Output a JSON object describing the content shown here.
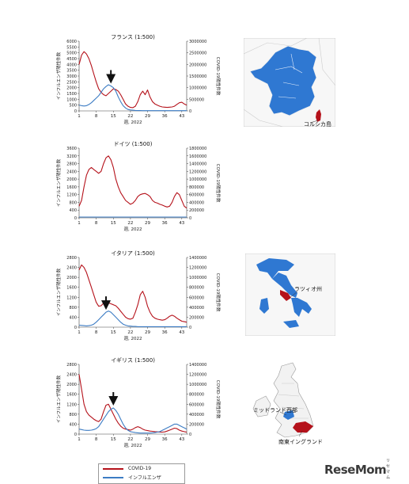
{
  "chart_data": [
    {
      "type": "line",
      "title": "フランス (1:500)",
      "xlabel": "週, 2022",
      "ylabel_left": "インフルエンザ陽性件数",
      "ylabel_right": "COVID-19陽性件数",
      "x": [
        1,
        2,
        3,
        4,
        5,
        6,
        7,
        8,
        9,
        10,
        11,
        12,
        13,
        14,
        15,
        16,
        17,
        18,
        19,
        20,
        21,
        22,
        23,
        24,
        25,
        26,
        27,
        28,
        29,
        30,
        31,
        32,
        33,
        34,
        35,
        36,
        37,
        38,
        39,
        40,
        41,
        42,
        43,
        44,
        45
      ],
      "xticks": [
        1,
        8,
        15,
        22,
        29,
        36,
        43
      ],
      "yticks_left": [
        0,
        500,
        1000,
        1500,
        2000,
        2500,
        3000,
        3500,
        4000,
        4500,
        5000,
        5500,
        6000
      ],
      "yticks_right": [
        0,
        500000,
        1000000,
        1500000,
        2000000,
        2500000,
        3000000
      ],
      "ylim_left": [
        0,
        6000
      ],
      "ylim_right": [
        0,
        3000000
      ],
      "arrow_week": 14,
      "series": [
        {
          "name": "COVID-19",
          "axis": "right",
          "color": "#b5121b",
          "values": [
            2000000,
            2400000,
            2550000,
            2450000,
            2250000,
            1950000,
            1600000,
            1250000,
            950000,
            800000,
            700000,
            650000,
            750000,
            850000,
            950000,
            920000,
            850000,
            700000,
            500000,
            300000,
            200000,
            150000,
            140000,
            200000,
            400000,
            700000,
            850000,
            700000,
            900000,
            600000,
            400000,
            300000,
            250000,
            200000,
            170000,
            160000,
            150000,
            160000,
            170000,
            200000,
            280000,
            350000,
            370000,
            300000,
            250000
          ]
        },
        {
          "name": "インフルエンザ",
          "axis": "left",
          "color": "#3c7cc4",
          "values": [
            500,
            450,
            420,
            450,
            550,
            700,
            900,
            1100,
            1300,
            1600,
            1900,
            2100,
            2250,
            2150,
            2000,
            1700,
            1200,
            800,
            450,
            250,
            120,
            80,
            60,
            40,
            30,
            30,
            20,
            20,
            20,
            20,
            20,
            20,
            20,
            20,
            20,
            20,
            20,
            20,
            20,
            20,
            20,
            20,
            20,
            20,
            20
          ]
        }
      ]
    },
    {
      "type": "line",
      "title": "ドイツ (1:500)",
      "xlabel": "週, 2022",
      "ylabel_left": "インフルエンザ陽性件数",
      "ylabel_right": "COVID-19陽性件数",
      "x": [
        1,
        2,
        3,
        4,
        5,
        6,
        7,
        8,
        9,
        10,
        11,
        12,
        13,
        14,
        15,
        16,
        17,
        18,
        19,
        20,
        21,
        22,
        23,
        24,
        25,
        26,
        27,
        28,
        29,
        30,
        31,
        32,
        33,
        34,
        35,
        36,
        37,
        38,
        39,
        40,
        41,
        42,
        43,
        44,
        45
      ],
      "xticks": [
        1,
        8,
        15,
        22,
        29,
        36,
        43
      ],
      "yticks_left": [
        0,
        400,
        800,
        1200,
        1600,
        2000,
        2400,
        2800,
        3200,
        3600
      ],
      "yticks_right": [
        0,
        200000,
        400000,
        600000,
        800000,
        1000000,
        1200000,
        1400000,
        1600000,
        1800000
      ],
      "ylim_left": [
        0,
        3600
      ],
      "ylim_right": [
        0,
        1800000
      ],
      "arrow_week": null,
      "series": [
        {
          "name": "COVID-19",
          "axis": "right",
          "color": "#b5121b",
          "values": [
            300000,
            450000,
            800000,
            1100000,
            1250000,
            1300000,
            1250000,
            1200000,
            1150000,
            1200000,
            1400000,
            1550000,
            1600000,
            1500000,
            1300000,
            1000000,
            800000,
            650000,
            550000,
            450000,
            400000,
            350000,
            380000,
            450000,
            550000,
            600000,
            620000,
            630000,
            600000,
            550000,
            450000,
            400000,
            380000,
            350000,
            330000,
            300000,
            280000,
            300000,
            400000,
            550000,
            650000,
            600000,
            450000,
            300000,
            250000
          ]
        },
        {
          "name": "インフルエンザ",
          "axis": "left",
          "color": "#3c7cc4",
          "values": [
            40,
            40,
            40,
            40,
            40,
            40,
            40,
            40,
            40,
            40,
            40,
            40,
            40,
            40,
            40,
            40,
            40,
            40,
            40,
            40,
            40,
            40,
            40,
            40,
            40,
            40,
            40,
            40,
            40,
            40,
            40,
            40,
            40,
            40,
            40,
            40,
            40,
            40,
            40,
            40,
            40,
            40,
            40,
            40,
            40
          ]
        }
      ]
    },
    {
      "type": "line",
      "title": "イタリア (1:500)",
      "xlabel": "週, 2022",
      "ylabel_left": "インフルエンザ陽性件数",
      "ylabel_right": "COVID-19陽性件数",
      "x": [
        1,
        2,
        3,
        4,
        5,
        6,
        7,
        8,
        9,
        10,
        11,
        12,
        13,
        14,
        15,
        16,
        17,
        18,
        19,
        20,
        21,
        22,
        23,
        24,
        25,
        26,
        27,
        28,
        29,
        30,
        31,
        32,
        33,
        34,
        35,
        36,
        37,
        38,
        39,
        40,
        41,
        42,
        43,
        44,
        45
      ],
      "xticks": [
        1,
        8,
        15,
        22,
        29,
        36,
        43
      ],
      "yticks_left": [
        0,
        400,
        800,
        1200,
        1600,
        2000,
        2400,
        2800
      ],
      "yticks_right": [
        0,
        200000,
        400000,
        600000,
        800000,
        1000000,
        1200000,
        1400000
      ],
      "ylim_left": [
        0,
        2800
      ],
      "ylim_right": [
        0,
        1400000
      ],
      "arrow_week": 12,
      "series": [
        {
          "name": "COVID-19",
          "axis": "right",
          "color": "#b5121b",
          "values": [
            1150000,
            1250000,
            1200000,
            1100000,
            950000,
            800000,
            650000,
            500000,
            420000,
            430000,
            480000,
            500000,
            490000,
            470000,
            450000,
            430000,
            380000,
            320000,
            260000,
            200000,
            170000,
            160000,
            180000,
            300000,
            450000,
            650000,
            720000,
            600000,
            420000,
            300000,
            220000,
            180000,
            160000,
            150000,
            140000,
            150000,
            180000,
            220000,
            240000,
            220000,
            180000,
            150000,
            120000,
            110000,
            100000
          ]
        },
        {
          "name": "インフルエンザ",
          "axis": "left",
          "color": "#3c7cc4",
          "values": [
            80,
            70,
            60,
            50,
            60,
            80,
            120,
            200,
            300,
            400,
            500,
            600,
            650,
            600,
            500,
            400,
            300,
            200,
            120,
            80,
            50,
            40,
            30,
            30,
            20,
            20,
            20,
            20,
            20,
            20,
            20,
            20,
            20,
            20,
            20,
            20,
            20,
            20,
            20,
            20,
            20,
            20,
            20,
            20,
            20
          ]
        }
      ]
    },
    {
      "type": "line",
      "title": "イギリス (1:500)",
      "xlabel": "週, 2022",
      "ylabel_left": "インフルエンザ陽性件数",
      "ylabel_right": "COVID-19陽性件数",
      "x": [
        1,
        2,
        3,
        4,
        5,
        6,
        7,
        8,
        9,
        10,
        11,
        12,
        13,
        14,
        15,
        16,
        17,
        18,
        19,
        20,
        21,
        22,
        23,
        24,
        25,
        26,
        27,
        28,
        29,
        30,
        31,
        32,
        33,
        34,
        35,
        36,
        37,
        38,
        39,
        40,
        41,
        42,
        43,
        44,
        45
      ],
      "xticks": [
        1,
        8,
        15,
        22,
        29,
        36,
        43
      ],
      "yticks_left": [
        0,
        400,
        800,
        1200,
        1600,
        2000,
        2400,
        2800
      ],
      "yticks_right": [
        0,
        200000,
        400000,
        600000,
        800000,
        1000000,
        1200000,
        1400000
      ],
      "ylim_left": [
        0,
        2800
      ],
      "ylim_right": [
        0,
        1400000
      ],
      "arrow_week": 15,
      "series": [
        {
          "name": "COVID-19",
          "axis": "right",
          "color": "#b5121b",
          "values": [
            1200000,
            900000,
            600000,
            450000,
            380000,
            340000,
            300000,
            270000,
            250000,
            300000,
            450000,
            580000,
            600000,
            500000,
            400000,
            300000,
            220000,
            160000,
            120000,
            100000,
            90000,
            80000,
            100000,
            130000,
            150000,
            130000,
            100000,
            80000,
            70000,
            60000,
            55000,
            50000,
            45000,
            40000,
            40000,
            45000,
            60000,
            80000,
            100000,
            120000,
            110000,
            80000,
            60000,
            50000,
            40000
          ]
        },
        {
          "name": "インフルエンザ",
          "axis": "left",
          "color": "#3c7cc4",
          "values": [
            200,
            180,
            160,
            150,
            150,
            160,
            180,
            220,
            300,
            450,
            600,
            750,
            900,
            1000,
            1050,
            950,
            800,
            600,
            400,
            250,
            150,
            100,
            80,
            60,
            50,
            40,
            40,
            40,
            40,
            40,
            50,
            60,
            80,
            100,
            150,
            200,
            250,
            300,
            350,
            400,
            400,
            350,
            300,
            250,
            200
          ]
        }
      ]
    }
  ],
  "legend": {
    "covid": {
      "label": "COVID-19",
      "color": "#b5121b"
    },
    "flu": {
      "label": "インフルエンザ",
      "color": "#3c7cc4"
    }
  },
  "maps": {
    "france_label": "コルシカ島",
    "italy_label": "ラツィオ州",
    "uk_label_1": "ミッドランド西部",
    "uk_label_2": "南東イングランド"
  },
  "logo": {
    "text": "ReseMom",
    "sup": "リセマム"
  }
}
